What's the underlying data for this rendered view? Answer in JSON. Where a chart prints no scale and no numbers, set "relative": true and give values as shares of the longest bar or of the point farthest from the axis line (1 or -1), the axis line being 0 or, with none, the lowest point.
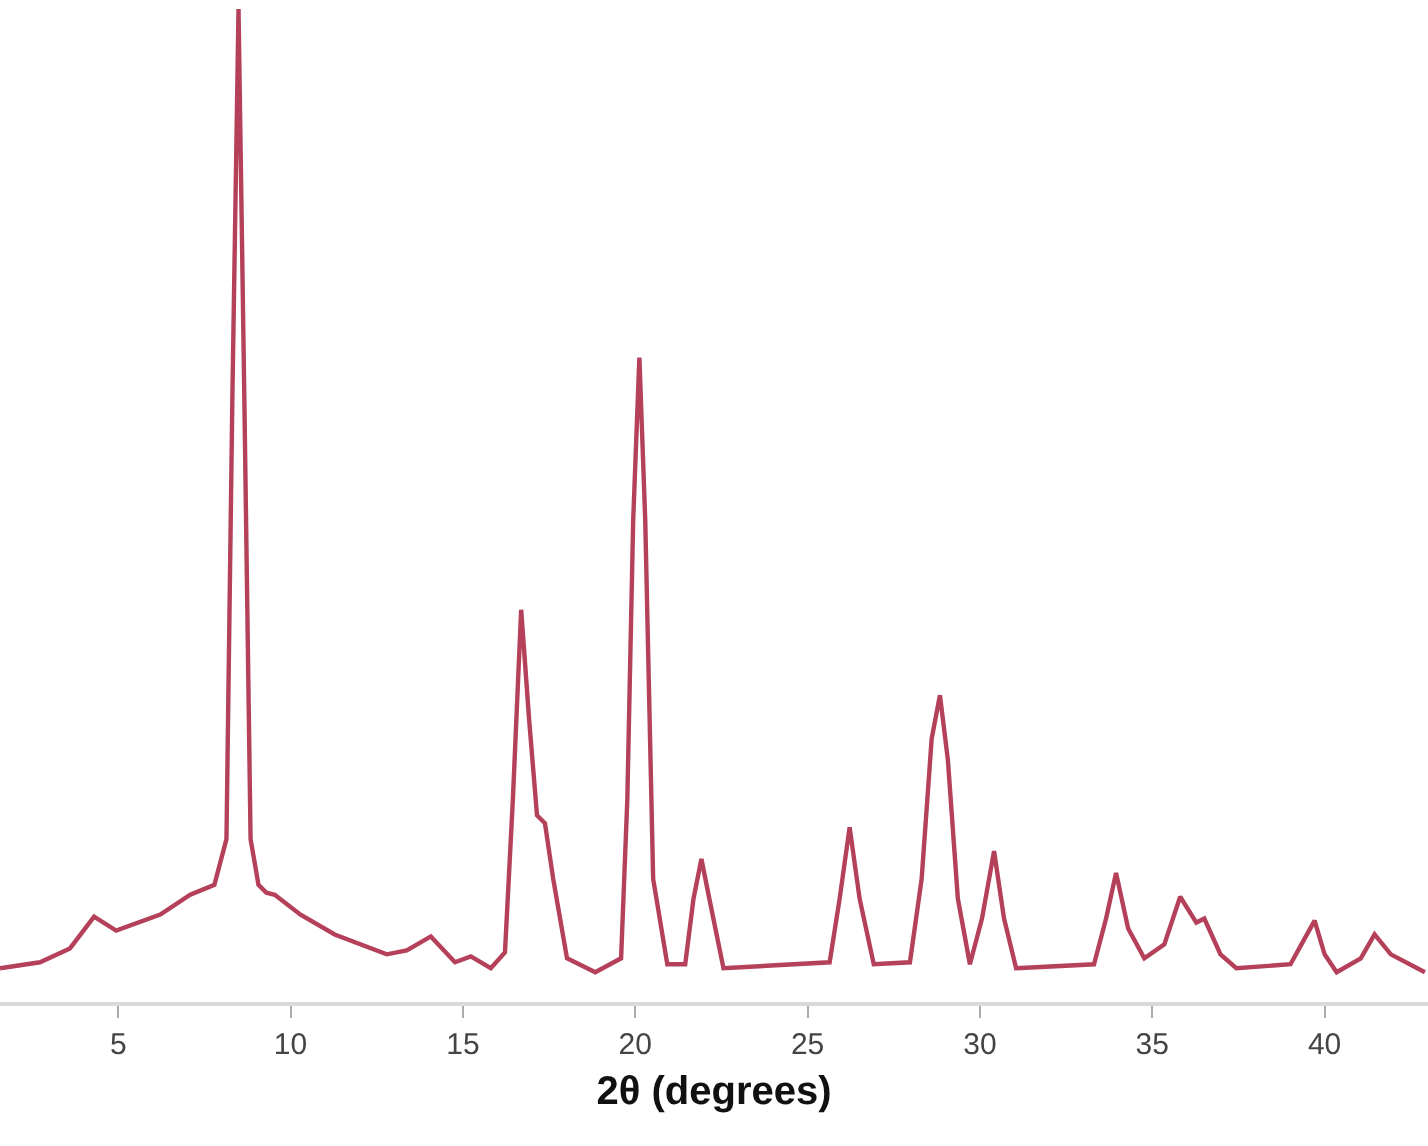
{
  "chart_data": {
    "type": "line",
    "xlabel": "2θ (degrees)",
    "relative": true,
    "xlim": [
      1.57,
      43.0
    ],
    "xticks": [
      5,
      10,
      15,
      20,
      25,
      30,
      35,
      40
    ],
    "marker": "none",
    "line_style": "solid",
    "series": [
      {
        "color": "#b5405a",
        "x": [
          1.57,
          2.73,
          3.6,
          4.3,
          4.94,
          6.22,
          7.09,
          7.79,
          8.14,
          8.31,
          8.49,
          8.66,
          8.84,
          9.07,
          9.3,
          9.54,
          10.29,
          11.28,
          12.79,
          13.37,
          14.07,
          14.77,
          15.23,
          15.81,
          16.22,
          16.45,
          16.69,
          16.92,
          17.15,
          17.38,
          17.62,
          18.02,
          18.84,
          19.59,
          19.77,
          19.94,
          20.12,
          20.29,
          20.52,
          20.93,
          21.45,
          21.69,
          21.92,
          22.15,
          22.56,
          25.64,
          25.93,
          26.22,
          26.51,
          26.92,
          27.97,
          28.31,
          28.6,
          28.84,
          29.07,
          29.36,
          29.71,
          30.06,
          30.41,
          30.7,
          31.05,
          33.31,
          33.66,
          33.95,
          34.3,
          34.77,
          35.35,
          35.81,
          36.28,
          36.51,
          36.98,
          37.44,
          39.01,
          39.36,
          39.71,
          40.0,
          40.35,
          41.05,
          41.45,
          41.92,
          42.91
        ],
        "values": [
          0.034,
          0.04,
          0.054,
          0.086,
          0.072,
          0.088,
          0.108,
          0.118,
          0.164,
          0.605,
          1,
          0.605,
          0.164,
          0.118,
          0.11,
          0.108,
          0.088,
          0.068,
          0.048,
          0.052,
          0.066,
          0.04,
          0.046,
          0.034,
          0.05,
          0.204,
          0.395,
          0.285,
          0.188,
          0.18,
          0.124,
          0.044,
          0.03,
          0.044,
          0.204,
          0.485,
          0.649,
          0.485,
          0.124,
          0.038,
          0.038,
          0.104,
          0.144,
          0.104,
          0.034,
          0.04,
          0.104,
          0.176,
          0.104,
          0.038,
          0.04,
          0.124,
          0.265,
          0.309,
          0.244,
          0.104,
          0.038,
          0.084,
          0.152,
          0.084,
          0.034,
          0.038,
          0.084,
          0.13,
          0.074,
          0.044,
          0.058,
          0.106,
          0.08,
          0.084,
          0.048,
          0.034,
          0.038,
          0.06,
          0.082,
          0.048,
          0.03,
          0.044,
          0.068,
          0.048,
          0.03
        ]
      }
    ]
  }
}
